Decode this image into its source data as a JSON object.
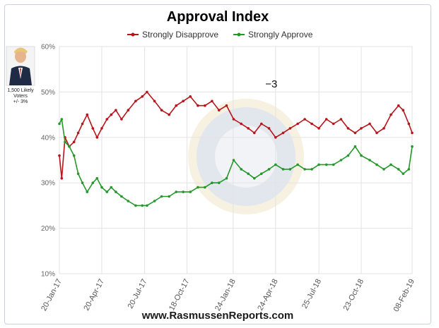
{
  "chart_data": {
    "type": "line",
    "title": "Approval Index",
    "legend": [
      "Strongly Disapprove",
      "Strongly Approve"
    ],
    "legend_placement": "top",
    "grid": true,
    "ylim": [
      10,
      60
    ],
    "y_ticks": [
      "60%",
      "50%",
      "40%",
      "30%",
      "20%",
      "10%"
    ],
    "x_ticks": [
      "20-Jan-17",
      "20-Apr-17",
      "20-Jul-17",
      "18-Oct-17",
      "24-Jan-18",
      "24-Apr-18",
      "25-Jul-18",
      "23-Oct-18",
      "08-Feb-19"
    ],
    "x_dates": [
      "2017-01-20",
      "2017-04-20",
      "2017-07-20",
      "2017-10-18",
      "2018-01-24",
      "2018-04-24",
      "2018-07-25",
      "2018-10-23",
      "2019-02-08"
    ],
    "series": [
      {
        "name": "Strongly Disapprove",
        "color": "#b8141b",
        "points": [
          [
            "2017-01-20",
            36
          ],
          [
            "2017-01-25",
            31
          ],
          [
            "2017-02-01",
            40
          ],
          [
            "2017-02-10",
            38
          ],
          [
            "2017-02-20",
            39
          ],
          [
            "2017-03-01",
            41
          ],
          [
            "2017-03-10",
            43
          ],
          [
            "2017-03-20",
            45
          ],
          [
            "2017-04-01",
            42
          ],
          [
            "2017-04-10",
            40
          ],
          [
            "2017-04-20",
            42
          ],
          [
            "2017-05-01",
            44
          ],
          [
            "2017-05-10",
            45
          ],
          [
            "2017-05-20",
            46
          ],
          [
            "2017-06-01",
            44
          ],
          [
            "2017-06-15",
            46
          ],
          [
            "2017-07-01",
            48
          ],
          [
            "2017-07-15",
            49
          ],
          [
            "2017-07-25",
            50
          ],
          [
            "2017-08-10",
            48
          ],
          [
            "2017-08-25",
            46
          ],
          [
            "2017-09-10",
            45
          ],
          [
            "2017-09-25",
            47
          ],
          [
            "2017-10-10",
            48
          ],
          [
            "2017-10-25",
            49
          ],
          [
            "2017-11-10",
            47
          ],
          [
            "2017-11-25",
            47
          ],
          [
            "2017-12-10",
            48
          ],
          [
            "2017-12-25",
            46
          ],
          [
            "2018-01-10",
            47
          ],
          [
            "2018-01-25",
            44
          ],
          [
            "2018-02-10",
            43
          ],
          [
            "2018-02-25",
            42
          ],
          [
            "2018-03-10",
            41
          ],
          [
            "2018-03-25",
            43
          ],
          [
            "2018-04-10",
            42
          ],
          [
            "2018-04-24",
            40
          ],
          [
            "2018-05-10",
            41
          ],
          [
            "2018-05-25",
            42
          ],
          [
            "2018-06-10",
            43
          ],
          [
            "2018-06-25",
            44
          ],
          [
            "2018-07-10",
            43
          ],
          [
            "2018-07-25",
            42
          ],
          [
            "2018-08-10",
            44
          ],
          [
            "2018-08-25",
            43
          ],
          [
            "2018-09-10",
            44
          ],
          [
            "2018-09-25",
            42
          ],
          [
            "2018-10-10",
            41
          ],
          [
            "2018-10-23",
            42
          ],
          [
            "2018-11-10",
            43
          ],
          [
            "2018-11-25",
            41
          ],
          [
            "2018-12-10",
            42
          ],
          [
            "2018-12-25",
            45
          ],
          [
            "2019-01-10",
            47
          ],
          [
            "2019-01-20",
            46
          ],
          [
            "2019-02-01",
            43
          ],
          [
            "2019-02-08",
            41
          ]
        ]
      },
      {
        "name": "Strongly Approve",
        "color": "#24992b",
        "points": [
          [
            "2017-01-20",
            43
          ],
          [
            "2017-01-25",
            44
          ],
          [
            "2017-02-01",
            39
          ],
          [
            "2017-02-10",
            38
          ],
          [
            "2017-02-20",
            36
          ],
          [
            "2017-03-01",
            32
          ],
          [
            "2017-03-10",
            30
          ],
          [
            "2017-03-20",
            28
          ],
          [
            "2017-04-01",
            30
          ],
          [
            "2017-04-10",
            31
          ],
          [
            "2017-04-20",
            29
          ],
          [
            "2017-05-01",
            28
          ],
          [
            "2017-05-10",
            29
          ],
          [
            "2017-05-20",
            28
          ],
          [
            "2017-06-01",
            27
          ],
          [
            "2017-06-15",
            26
          ],
          [
            "2017-07-01",
            25
          ],
          [
            "2017-07-15",
            25
          ],
          [
            "2017-07-25",
            25
          ],
          [
            "2017-08-10",
            26
          ],
          [
            "2017-08-25",
            27
          ],
          [
            "2017-09-10",
            27
          ],
          [
            "2017-09-25",
            28
          ],
          [
            "2017-10-10",
            28
          ],
          [
            "2017-10-25",
            28
          ],
          [
            "2017-11-10",
            29
          ],
          [
            "2017-11-25",
            29
          ],
          [
            "2017-12-10",
            30
          ],
          [
            "2017-12-25",
            30
          ],
          [
            "2018-01-10",
            31
          ],
          [
            "2018-01-25",
            35
          ],
          [
            "2018-02-10",
            33
          ],
          [
            "2018-02-25",
            32
          ],
          [
            "2018-03-10",
            31
          ],
          [
            "2018-03-25",
            32
          ],
          [
            "2018-04-10",
            33
          ],
          [
            "2018-04-24",
            34
          ],
          [
            "2018-05-10",
            33
          ],
          [
            "2018-05-25",
            33
          ],
          [
            "2018-06-10",
            34
          ],
          [
            "2018-06-25",
            33
          ],
          [
            "2018-07-10",
            33
          ],
          [
            "2018-07-25",
            34
          ],
          [
            "2018-08-10",
            34
          ],
          [
            "2018-08-25",
            34
          ],
          [
            "2018-09-10",
            35
          ],
          [
            "2018-09-25",
            36
          ],
          [
            "2018-10-10",
            38
          ],
          [
            "2018-10-23",
            36
          ],
          [
            "2018-11-10",
            35
          ],
          [
            "2018-11-25",
            34
          ],
          [
            "2018-12-10",
            33
          ],
          [
            "2018-12-25",
            34
          ],
          [
            "2019-01-10",
            33
          ],
          [
            "2019-01-20",
            32
          ],
          [
            "2019-02-01",
            33
          ],
          [
            "2019-02-08",
            38
          ]
        ]
      }
    ],
    "annotation": "−3",
    "annotation_anchor_date": "2018-04-15"
  },
  "portrait": {
    "caption_line1": "1,500 Likely",
    "caption_line2": "Voters",
    "caption_line3": "+/- 3%"
  },
  "footer": "www.RasmussenReports.com",
  "colors": {
    "disapprove": "#b8141b",
    "approve": "#24992b",
    "grid": "#e3e3e3",
    "frame": "#c9d3e0"
  }
}
